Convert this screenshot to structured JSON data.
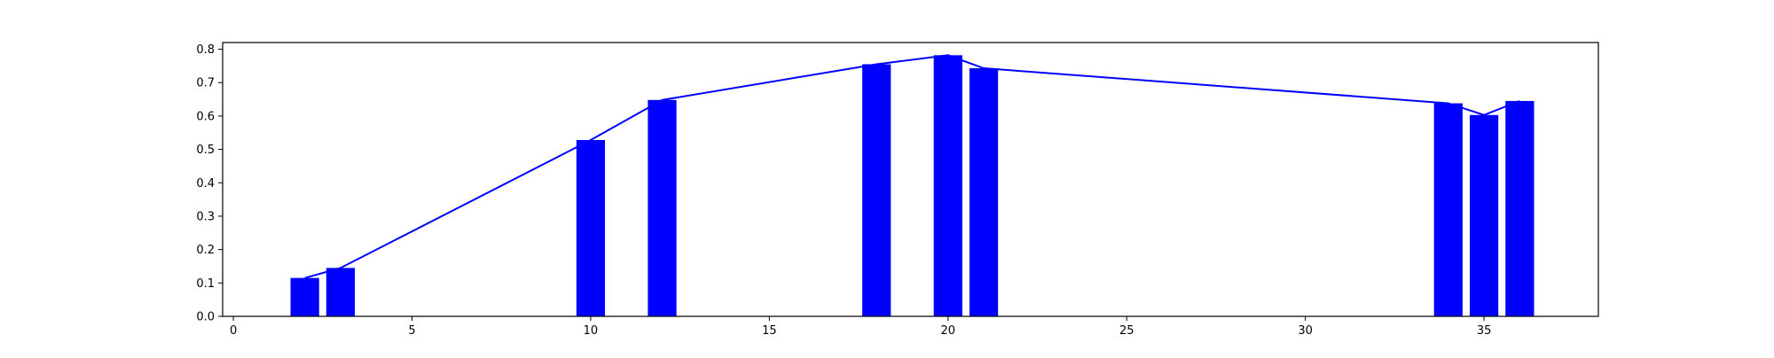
{
  "chart_data": {
    "type": "bar",
    "title": "",
    "xlabel": "",
    "ylabel": "",
    "xlim": [
      -0.3,
      38.2
    ],
    "ylim": [
      0.0,
      0.82
    ],
    "grid": false,
    "bar_color": "#0000ff",
    "line_color": "#0000ff",
    "x_ticks": [
      0,
      5,
      10,
      15,
      20,
      25,
      30,
      35
    ],
    "x_tick_labels": [
      "0",
      "5",
      "10",
      "15",
      "20",
      "25",
      "30",
      "35"
    ],
    "y_ticks": [
      0.0,
      0.1,
      0.2,
      0.3,
      0.4,
      0.5,
      0.6,
      0.7,
      0.8
    ],
    "y_tick_labels": [
      "0.0",
      "0.1",
      "0.2",
      "0.3",
      "0.4",
      "0.5",
      "0.6",
      "0.7",
      "0.8"
    ],
    "bar_width": 0.8,
    "x": [
      2,
      3,
      10,
      12,
      18,
      20,
      21,
      34,
      35,
      36
    ],
    "values": [
      0.115,
      0.145,
      0.528,
      0.648,
      0.755,
      0.782,
      0.743,
      0.638,
      0.603,
      0.645
    ]
  }
}
